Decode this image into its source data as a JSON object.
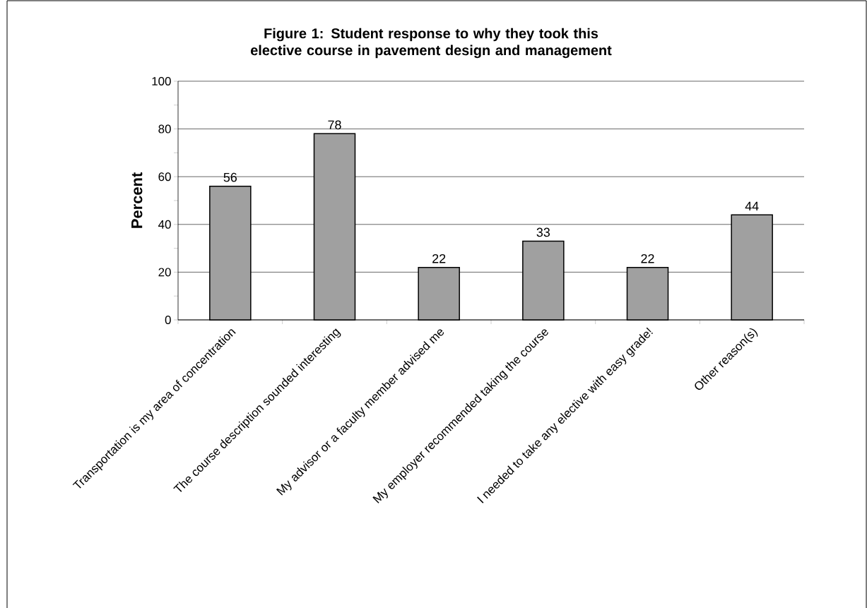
{
  "chart_data": {
    "type": "bar",
    "title": "Figure 1: Student response to why they took this elective course in pavement design and management",
    "ylabel": "Percent",
    "categories": [
      "Transportation is my area of concentration",
      "The course description sounded interesting",
      "My advisor or a faculty member advised me",
      "My employer recommended taking the course",
      "I needed to take any elective with easy grade!",
      "Other reason(s)"
    ],
    "values": [
      56,
      78,
      22,
      33,
      22,
      44
    ],
    "color": "#a0a0a0",
    "data_labels": true,
    "ylim": [
      0,
      100
    ],
    "yticks": [
      0,
      20,
      40,
      60,
      80,
      100
    ],
    "grid": "y"
  }
}
